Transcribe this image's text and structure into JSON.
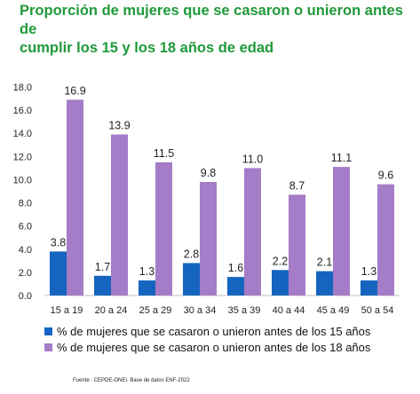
{
  "title_line1": "Proporción de mujeres que se casaron o unieron antes de",
  "title_line2": "cumplir los 15 y los 18 años de edad",
  "source": "Fuente : CEPDE-ONEI. Base de datos ENF-2022",
  "chart_data": {
    "type": "bar",
    "title": "Proporción de mujeres que se casaron o unieron antes de cumplir los 15 y los 18 años de edad",
    "categories": [
      "15 a 19",
      "20 a 24",
      "25 a 29",
      "30 a 34",
      "35 a 39",
      "40 a 44",
      "45 a 49",
      "50 a 54"
    ],
    "series": [
      {
        "name": "% de mujeres que se casaron o unieron antes de los 15 años",
        "color": "#1565c0",
        "values": [
          3.8,
          1.7,
          1.3,
          2.8,
          1.6,
          2.2,
          2.1,
          1.3
        ]
      },
      {
        "name": "% de mujeres que se casaron o unieron antes de los 18 años",
        "color": "#a57cc8",
        "values": [
          16.9,
          13.9,
          11.5,
          9.8,
          11.0,
          8.7,
          11.1,
          9.6
        ]
      }
    ],
    "yticks": [
      "0.0",
      "2.0",
      "4.0",
      "6.0",
      "8.0",
      "10.0",
      "12.0",
      "14.0",
      "16.0",
      "18.0"
    ],
    "ylim": [
      0,
      18
    ],
    "grid": false,
    "legend": "bottom",
    "xlabel": "",
    "ylabel": ""
  }
}
